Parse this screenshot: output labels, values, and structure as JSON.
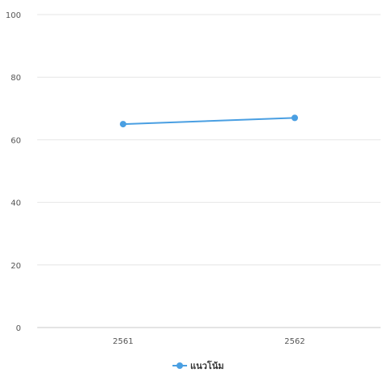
{
  "chart_data": {
    "type": "line",
    "categories": [
      "2561",
      "2562"
    ],
    "series": [
      {
        "name": "แนวโน้ม",
        "values": [
          65,
          67
        ]
      }
    ],
    "ylim": [
      0,
      100
    ],
    "yticks": [
      "0",
      "20",
      "40",
      "60",
      "80",
      "100"
    ],
    "grid": true,
    "legend": "bottom-center"
  },
  "colors": {
    "series": "#4a9fe2",
    "grid": "#e6e6e6",
    "baseline": "#c8c8c8"
  }
}
